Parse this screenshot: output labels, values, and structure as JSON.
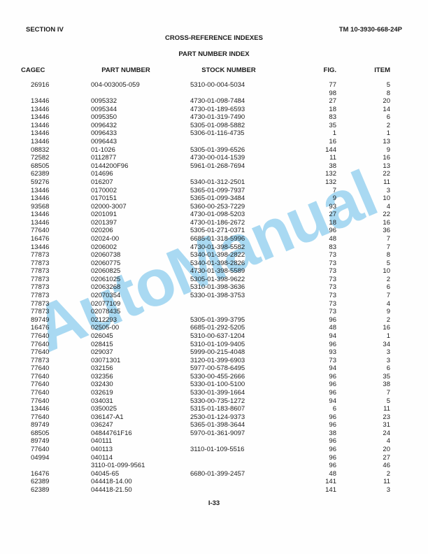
{
  "page": {
    "section_label": "SECTION IV",
    "tm_number": "TM 10-3930-668-24P",
    "title": "CROSS-REFERENCE INDEXES",
    "subtitle": "PART NUMBER INDEX",
    "footer_page_number": "I-33",
    "watermark_text": "AutoManual",
    "watermark_color": "#a9d9f2"
  },
  "table": {
    "columns": [
      "CAGEC",
      "PART NUMBER",
      "STOCK NUMBER",
      "FIG.",
      "ITEM"
    ],
    "rows": [
      {
        "cagec": "26916",
        "part": "004-003005-059",
        "stock": "5310-00-004-5034",
        "fig": "77",
        "item": "5"
      },
      {
        "cagec": "",
        "part": "",
        "stock": "",
        "fig": "98",
        "item": "8"
      },
      {
        "cagec": "13446",
        "part": "0095332",
        "stock": "4730-01-098-7484",
        "fig": "27",
        "item": "20"
      },
      {
        "cagec": "13446",
        "part": "0095344",
        "stock": "4730-01-189-6593",
        "fig": "18",
        "item": "14"
      },
      {
        "cagec": "13446",
        "part": "0095350",
        "stock": "4730-01-319-7490",
        "fig": "83",
        "item": "6"
      },
      {
        "cagec": "13446",
        "part": "0096432",
        "stock": "5305-01-098-5882",
        "fig": "35",
        "item": "2"
      },
      {
        "cagec": "13446",
        "part": "0096433",
        "stock": "5306-01-116-4735",
        "fig": "1",
        "item": "1"
      },
      {
        "cagec": "13446",
        "part": "0096443",
        "stock": "",
        "fig": "16",
        "item": "13"
      },
      {
        "cagec": "08832",
        "part": "01-1026",
        "stock": "5305-01-399-6526",
        "fig": "144",
        "item": "9"
      },
      {
        "cagec": "72582",
        "part": "0112877",
        "stock": "4730-00-014-1539",
        "fig": "11",
        "item": "16"
      },
      {
        "cagec": "68505",
        "part": "0144200F96",
        "stock": "5961-01-268-7694",
        "fig": "38",
        "item": "13"
      },
      {
        "cagec": "62389",
        "part": "014696",
        "stock": "",
        "fig": "132",
        "item": "22"
      },
      {
        "cagec": "59276",
        "part": "016207",
        "stock": "5340-01-312-2501",
        "fig": "132",
        "item": "11"
      },
      {
        "cagec": "13446",
        "part": "0170002",
        "stock": "5365-01-099-7937",
        "fig": "7",
        "item": "3"
      },
      {
        "cagec": "13446",
        "part": "0170151",
        "stock": "5365-01-099-3484",
        "fig": "9",
        "item": "10"
      },
      {
        "cagec": "93568",
        "part": "02000-3007",
        "stock": "5360-00-253-7229",
        "fig": "93",
        "item": "4"
      },
      {
        "cagec": "13446",
        "part": "0201091",
        "stock": "4730-01-098-5203",
        "fig": "27",
        "item": "22"
      },
      {
        "cagec": "13446",
        "part": "0201397",
        "stock": "4730-01-186-2672",
        "fig": "18",
        "item": "16"
      },
      {
        "cagec": "77640",
        "part": "020206",
        "stock": "5305-01-271-0371",
        "fig": "96",
        "item": "36"
      },
      {
        "cagec": "16476",
        "part": "02024-00",
        "stock": "6685-01-318-5996",
        "fig": "48",
        "item": "7"
      },
      {
        "cagec": "13446",
        "part": "0206002",
        "stock": "4730-01-398-5582",
        "fig": "83",
        "item": "7"
      },
      {
        "cagec": "77873",
        "part": "02060738",
        "stock": "5340-01-398-2822",
        "fig": "73",
        "item": "8"
      },
      {
        "cagec": "77873",
        "part": "02060775",
        "stock": "5340-01-398-2826",
        "fig": "73",
        "item": "5"
      },
      {
        "cagec": "77873",
        "part": "02060825",
        "stock": "4730-01-398-5589",
        "fig": "73",
        "item": "10"
      },
      {
        "cagec": "77873",
        "part": "02061025",
        "stock": "5305-01-398-9622",
        "fig": "73",
        "item": "2"
      },
      {
        "cagec": "77873",
        "part": "02063268",
        "stock": "5310-01-398-3636",
        "fig": "73",
        "item": "6"
      },
      {
        "cagec": "77873",
        "part": "02070354",
        "stock": "5330-01-398-3753",
        "fig": "73",
        "item": "7"
      },
      {
        "cagec": "77873",
        "part": "02077109",
        "stock": "",
        "fig": "73",
        "item": "4"
      },
      {
        "cagec": "77873",
        "part": "02078435",
        "stock": "",
        "fig": "73",
        "item": "9"
      },
      {
        "cagec": "89749",
        "part": "0212293",
        "stock": "5305-01-399-3795",
        "fig": "96",
        "item": "2"
      },
      {
        "cagec": "16476",
        "part": "02505-00",
        "stock": "6685-01-292-5205",
        "fig": "48",
        "item": "16"
      },
      {
        "cagec": "77640",
        "part": "026045",
        "stock": "5310-00-637-1204",
        "fig": "94",
        "item": "1"
      },
      {
        "cagec": "77640",
        "part": "028415",
        "stock": "5310-01-109-9405",
        "fig": "96",
        "item": "34"
      },
      {
        "cagec": "77640",
        "part": "029037",
        "stock": "5999-00-215-4048",
        "fig": "93",
        "item": "3"
      },
      {
        "cagec": "77873",
        "part": "03071301",
        "stock": "3120-01-399-6903",
        "fig": "73",
        "item": "3"
      },
      {
        "cagec": "77640",
        "part": "032156",
        "stock": "5977-00-578-6495",
        "fig": "94",
        "item": "6"
      },
      {
        "cagec": "77640",
        "part": "032356",
        "stock": "5330-00-455-2666",
        "fig": "96",
        "item": "35"
      },
      {
        "cagec": "77640",
        "part": "032430",
        "stock": "5330-01-100-5100",
        "fig": "96",
        "item": "38"
      },
      {
        "cagec": "77640",
        "part": "032619",
        "stock": "5330-01-399-1664",
        "fig": "96",
        "item": "7"
      },
      {
        "cagec": "77640",
        "part": "034031",
        "stock": "5330-00-735-1272",
        "fig": "94",
        "item": "5"
      },
      {
        "cagec": "13446",
        "part": "0350025",
        "stock": "5315-01-183-8607",
        "fig": "6",
        "item": "11"
      },
      {
        "cagec": "77640",
        "part": "036147-A1",
        "stock": "2530-01-124-9373",
        "fig": "96",
        "item": "23"
      },
      {
        "cagec": "89749",
        "part": "036247",
        "stock": "5365-01-398-3644",
        "fig": "96",
        "item": "31"
      },
      {
        "cagec": "68505",
        "part": "04844761F16",
        "stock": "5970-01-361-9097",
        "fig": "38",
        "item": "24"
      },
      {
        "cagec": "89749",
        "part": "040111",
        "stock": "",
        "fig": "96",
        "item": "4"
      },
      {
        "cagec": "77640",
        "part": "040113",
        "stock": "3110-01-109-5516",
        "fig": "96",
        "item": "20"
      },
      {
        "cagec": "04994",
        "part": "040114",
        "stock": "",
        "fig": "96",
        "item": "27"
      },
      {
        "cagec": "",
        "part": "3110-01-099-9561",
        "stock": "",
        "fig": "96",
        "item": "46"
      },
      {
        "cagec": "16476",
        "part": "04045-65",
        "stock": "6680-01-399-2457",
        "fig": "48",
        "item": "2"
      },
      {
        "cagec": "62389",
        "part": "044418-14.00",
        "stock": "",
        "fig": "141",
        "item": "11"
      },
      {
        "cagec": "62389",
        "part": "044418-21.50",
        "stock": "",
        "fig": "141",
        "item": "3"
      }
    ]
  }
}
